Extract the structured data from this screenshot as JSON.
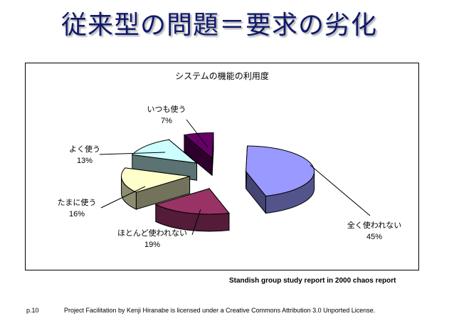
{
  "slide": {
    "title": "従来型の問題＝要求の劣化",
    "source": "Standish group study report in 2000 chaos report",
    "page_number": "p.10",
    "license": "Project Facilitation by Kenji Hiranabe is licensed under a Creative Commons Attribution 3.0 Unported License."
  },
  "colors": {
    "title": "#0f1a6a",
    "never": "#9999ff",
    "seldom": "#993366",
    "sometimes": "#ffffcc",
    "often": "#ccffff",
    "always": "#660066"
  },
  "chart_data": {
    "type": "pie",
    "title": "システムの機能の利用度",
    "slices": [
      {
        "label": "全く使われない",
        "value": 45,
        "value_label": "45%"
      },
      {
        "label": "ほとんど使われない",
        "value": 19,
        "value_label": "19%"
      },
      {
        "label": "たまに使う",
        "value": 16,
        "value_label": "16%"
      },
      {
        "label": "よく使う",
        "value": 13,
        "value_label": "13%"
      },
      {
        "label": "いつも使う",
        "value": 7,
        "value_label": "7%"
      }
    ],
    "legend": "none",
    "style": "3d exploded"
  }
}
